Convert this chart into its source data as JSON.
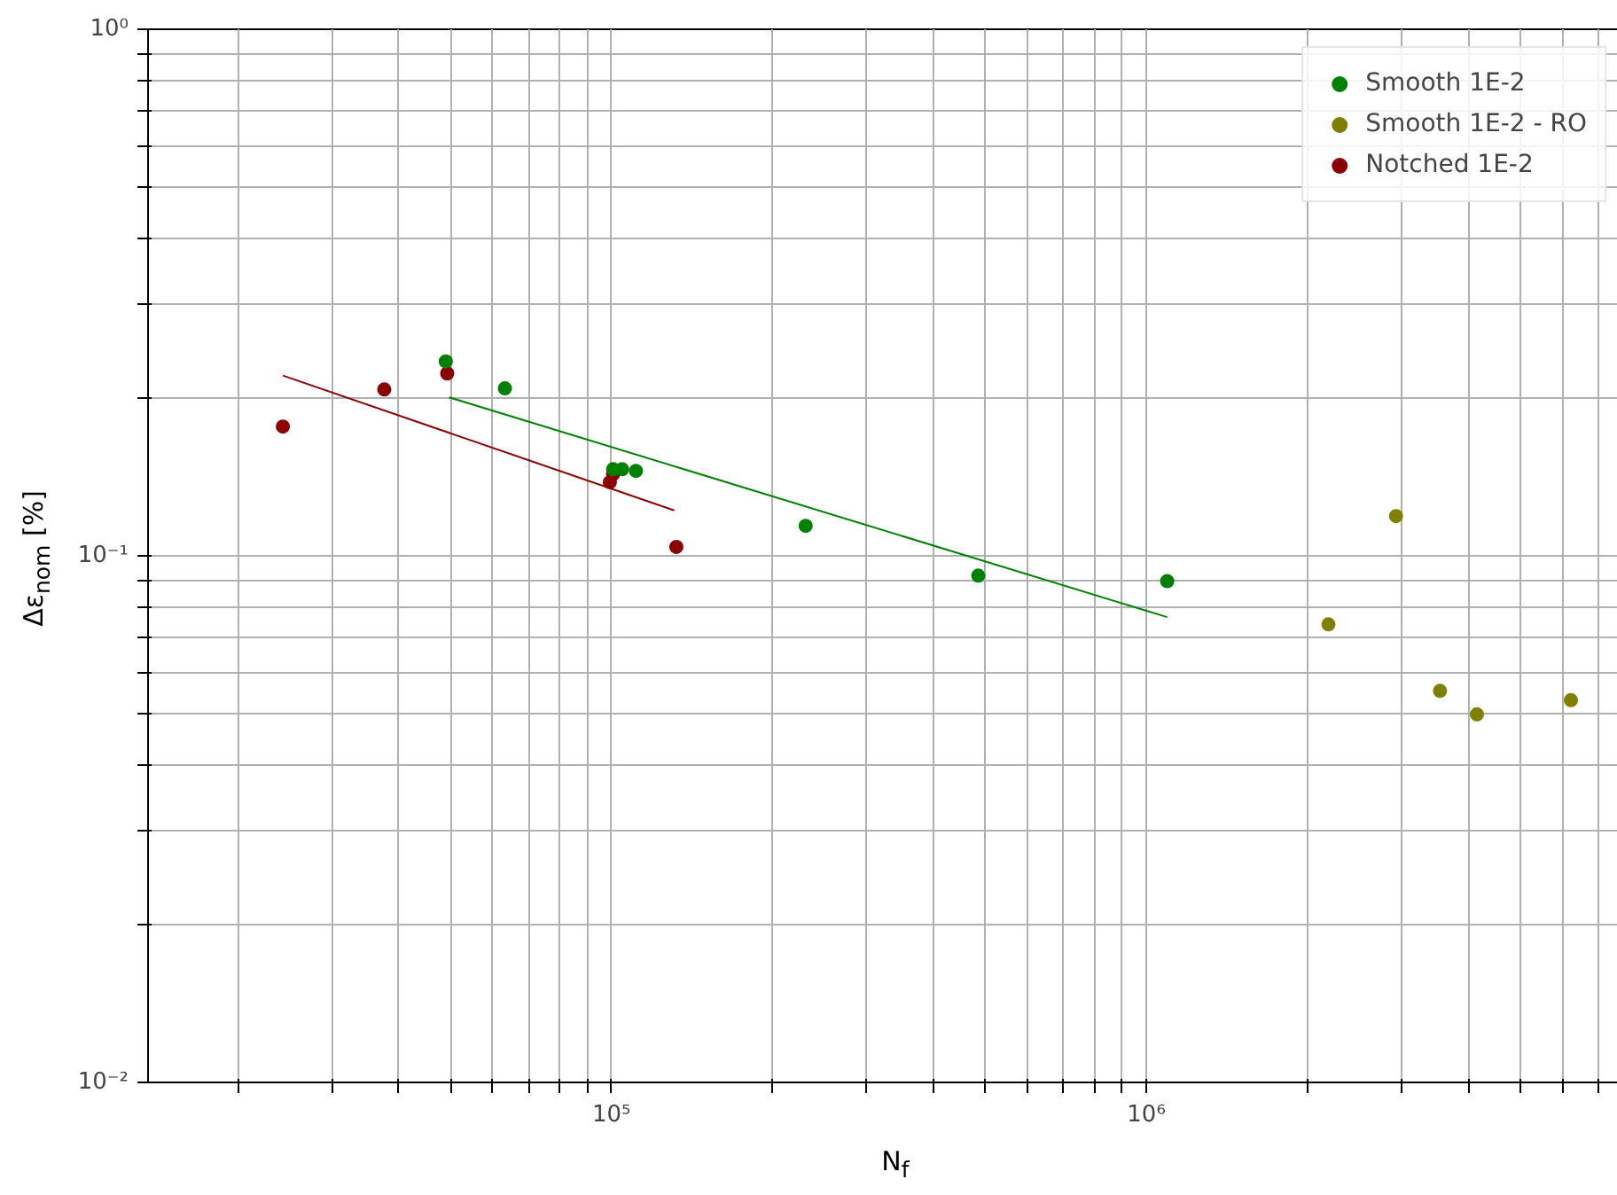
{
  "chart_data": {
    "type": "scatter",
    "xlabel": "N$_{f}$",
    "ylabel": "Δε$_{nom}$ [%]",
    "log": "xy",
    "grid": true,
    "legend": "top right",
    "marker": "circle",
    "xlim": [
      13600,
      7850000
    ],
    "ylim": [
      0.01,
      1
    ],
    "xticks": [
      {
        "value": 20000,
        "label": null
      },
      {
        "value": 30000,
        "label": null
      },
      {
        "value": 40000,
        "label": null
      },
      {
        "value": 50000,
        "label": null
      },
      {
        "value": 60000,
        "label": null
      },
      {
        "value": 70000,
        "label": null
      },
      {
        "value": 80000,
        "label": null
      },
      {
        "value": 90000,
        "label": null
      },
      {
        "value": 100000,
        "label": "10⁵"
      },
      {
        "value": 200000,
        "label": null
      },
      {
        "value": 300000,
        "label": null
      },
      {
        "value": 400000,
        "label": null
      },
      {
        "value": 500000,
        "label": null
      },
      {
        "value": 600000,
        "label": null
      },
      {
        "value": 700000,
        "label": null
      },
      {
        "value": 800000,
        "label": null
      },
      {
        "value": 900000,
        "label": null
      },
      {
        "value": 1000000,
        "label": "10⁶"
      },
      {
        "value": 2000000,
        "label": null
      },
      {
        "value": 3000000,
        "label": null
      },
      {
        "value": 4000000,
        "label": null
      },
      {
        "value": 5000000,
        "label": null
      },
      {
        "value": 6000000,
        "label": null
      },
      {
        "value": 7000000,
        "label": null
      }
    ],
    "yticks": [
      {
        "value": 0.01,
        "label": "10⁻²"
      },
      {
        "value": 0.02,
        "label": null
      },
      {
        "value": 0.03,
        "label": null
      },
      {
        "value": 0.04,
        "label": null
      },
      {
        "value": 0.05,
        "label": null
      },
      {
        "value": 0.06,
        "label": null
      },
      {
        "value": 0.07,
        "label": null
      },
      {
        "value": 0.08,
        "label": null
      },
      {
        "value": 0.09,
        "label": null
      },
      {
        "value": 0.1,
        "label": "10⁻¹"
      },
      {
        "value": 0.2,
        "label": null
      },
      {
        "value": 0.3,
        "label": null
      },
      {
        "value": 0.4,
        "label": null
      },
      {
        "value": 0.5,
        "label": null
      },
      {
        "value": 0.6,
        "label": null
      },
      {
        "value": 0.7,
        "label": null
      },
      {
        "value": 0.8,
        "label": null
      },
      {
        "value": 0.9,
        "label": null
      },
      {
        "value": 1,
        "label": "10⁰"
      }
    ],
    "series": [
      {
        "name": "Smooth 1E-2",
        "color": "#008000",
        "x": [
          49000,
          63200,
          100700,
          104700,
          111100,
          230700,
          485000,
          1094000
        ],
        "values": [
          0.234,
          0.208,
          0.146,
          0.146,
          0.145,
          0.114,
          0.0917,
          0.0895
        ]
      },
      {
        "name": "Smooth 1E-2 - RO",
        "color": "#808000",
        "x": [
          2190000,
          2930000,
          3540000,
          4150000,
          6220000
        ],
        "values": [
          0.0741,
          0.119,
          0.0554,
          0.05,
          0.0532
        ]
      },
      {
        "name": "Notched 1E-2",
        "color": "#8b0000",
        "x": [
          24300,
          37600,
          49300,
          99300,
          100700,
          132200
        ],
        "values": [
          0.176,
          0.207,
          0.222,
          0.138,
          0.143,
          0.104
        ]
      },
      {
        "type": "line",
        "marker": "none",
        "color": "#008000",
        "x": [
          49700,
          1094000
        ],
        "values": [
          0.2,
          0.0765
        ]
      },
      {
        "type": "line",
        "marker": "none",
        "color": "#8b0000",
        "x": [
          24300,
          131000
        ],
        "values": [
          0.22,
          0.122
        ]
      }
    ]
  }
}
